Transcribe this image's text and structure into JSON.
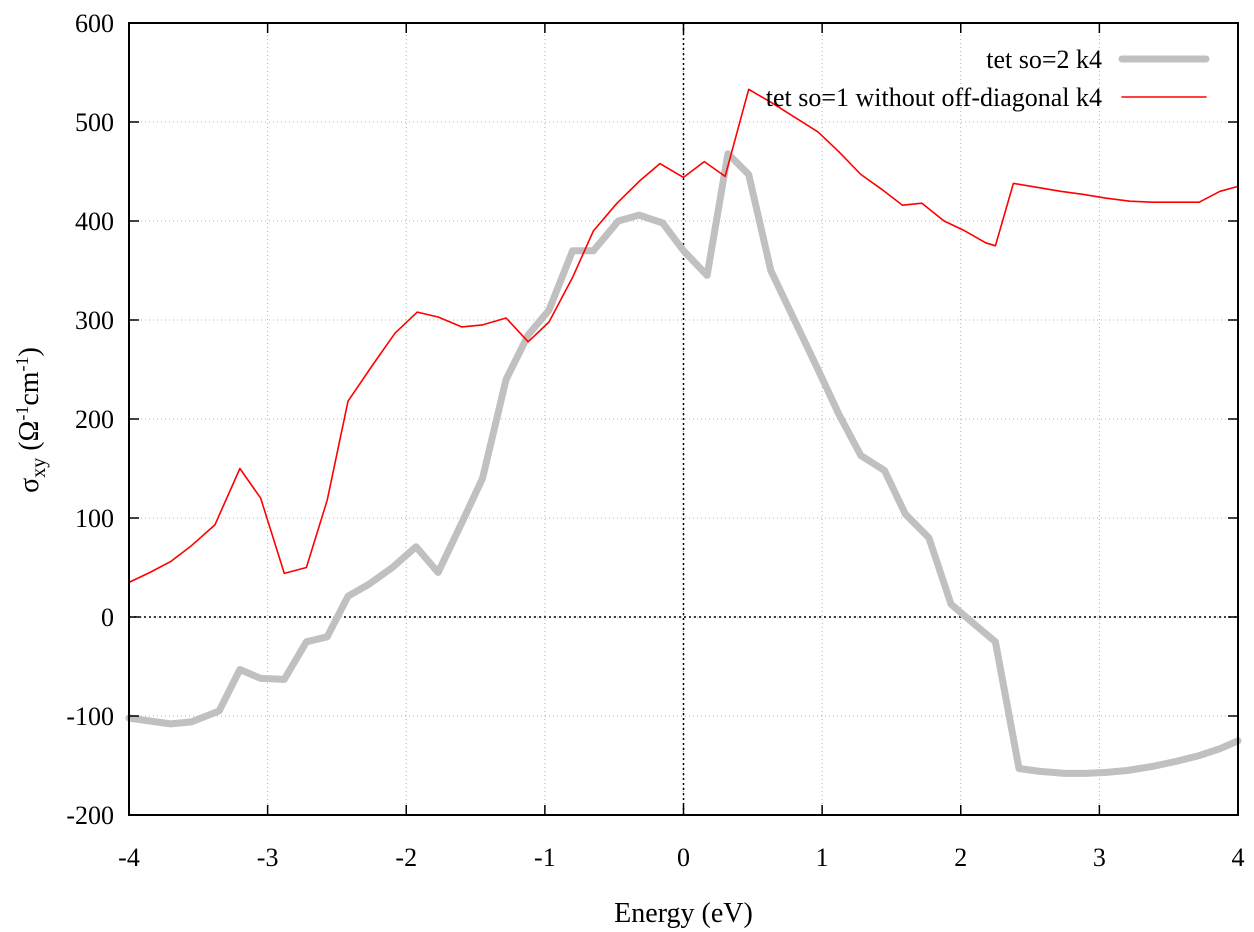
{
  "chart_data": {
    "type": "line",
    "title": "",
    "xlabel": "Energy (eV)",
    "ylabel": {
      "symbol": "σ",
      "subscript": "xy",
      "unit_open": " (Ω",
      "unit_exp1": "-1",
      "unit_mid": "cm",
      "unit_exp2": "-1",
      "unit_close": ")"
    },
    "xlim": [
      -4,
      4
    ],
    "ylim": [
      -200,
      600
    ],
    "xticks": [
      -4,
      -3,
      -2,
      -1,
      0,
      1,
      2,
      3,
      4
    ],
    "yticks": [
      -200,
      -100,
      0,
      100,
      200,
      300,
      400,
      500,
      600
    ],
    "grid": true,
    "zero_lines": true,
    "legend_position": "top-right",
    "series": [
      {
        "name": "tet so=2 k4",
        "color": "#c0c0c0",
        "x": [
          -4.0,
          -3.85,
          -3.7,
          -3.55,
          -3.35,
          -3.2,
          -3.05,
          -2.88,
          -2.72,
          -2.57,
          -2.42,
          -2.27,
          -2.1,
          -1.93,
          -1.77,
          -1.6,
          -1.45,
          -1.28,
          -1.12,
          -0.97,
          -0.8,
          -0.65,
          -0.47,
          -0.32,
          -0.15,
          0.0,
          0.17,
          0.32,
          0.47,
          0.63,
          0.8,
          0.97,
          1.12,
          1.28,
          1.45,
          1.6,
          1.77,
          1.93,
          2.08,
          2.25,
          2.42,
          2.57,
          2.75,
          2.9,
          3.05,
          3.2,
          3.38,
          3.55,
          3.72,
          3.87,
          4.0
        ],
        "y": [
          -102,
          -105,
          -108,
          -106,
          -95,
          -53,
          -62,
          -63,
          -25,
          -20,
          21,
          33,
          50,
          71,
          45,
          95,
          140,
          240,
          285,
          310,
          370,
          370,
          400,
          406,
          398,
          370,
          345,
          468,
          447,
          350,
          300,
          250,
          205,
          163,
          148,
          104,
          80,
          13,
          -5,
          -25,
          -153,
          -156,
          -158,
          -158,
          -157,
          -155,
          -151,
          -146,
          -140,
          -133,
          -125
        ]
      },
      {
        "name": "tet so=1 without off-diagonal k4",
        "color": "#ff0000",
        "x": [
          -4.0,
          -3.85,
          -3.7,
          -3.55,
          -3.38,
          -3.2,
          -3.05,
          -2.88,
          -2.72,
          -2.57,
          -2.42,
          -2.25,
          -2.08,
          -1.92,
          -1.77,
          -1.6,
          -1.45,
          -1.28,
          -1.12,
          -0.97,
          -0.8,
          -0.65,
          -0.48,
          -0.32,
          -0.17,
          0.0,
          0.15,
          0.3,
          0.47,
          0.63,
          0.8,
          0.97,
          1.12,
          1.28,
          1.43,
          1.58,
          1.72,
          1.88,
          2.03,
          2.18,
          2.25,
          2.38,
          2.55,
          2.72,
          2.88,
          3.05,
          3.22,
          3.38,
          3.55,
          3.72,
          3.87,
          4.0
        ],
        "y": [
          35,
          45,
          56,
          72,
          93,
          150,
          120,
          44,
          50,
          118,
          218,
          253,
          287,
          308,
          303,
          293,
          295,
          302,
          278,
          298,
          343,
          390,
          418,
          440,
          458,
          444,
          460,
          445,
          533,
          520,
          505,
          490,
          470,
          447,
          432,
          416,
          418,
          400,
          390,
          378,
          375,
          438,
          434,
          430,
          427,
          423,
          420,
          419,
          419,
          419,
          430,
          435
        ]
      }
    ]
  }
}
